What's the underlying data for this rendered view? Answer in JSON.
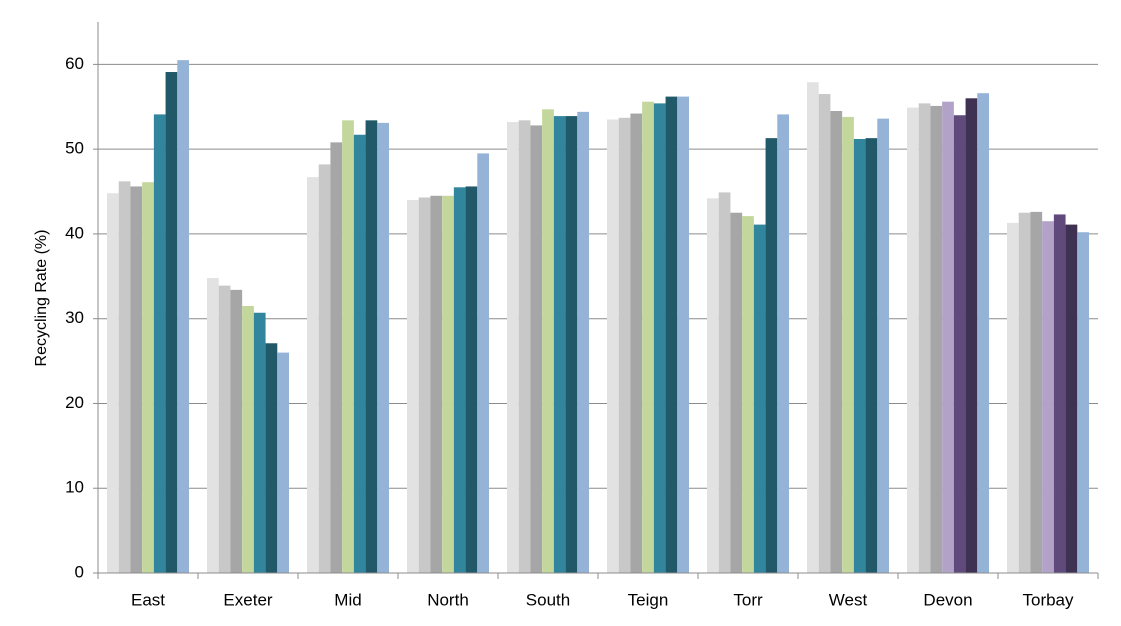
{
  "chart_data": {
    "type": "bar",
    "y_label": "Recycling Rate (%)",
    "categories": [
      "East",
      "Exeter",
      "Mid",
      "North",
      "South",
      "Teign",
      "Torr",
      "West",
      "Devon",
      "Torbay"
    ],
    "series": [
      {
        "colors": [
          "#e2e2e2",
          "#e2e2e2",
          "#e2e2e2",
          "#e2e2e2",
          "#e2e2e2",
          "#e2e2e2",
          "#e2e2e2",
          "#e2e2e2",
          "#e2e2e2",
          "#e2e2e2"
        ],
        "values": [
          44.8,
          34.8,
          46.7,
          44.0,
          53.2,
          53.5,
          44.2,
          57.9,
          54.9,
          41.3
        ]
      },
      {
        "colors": [
          "#c8c8c8",
          "#c8c8c8",
          "#c8c8c8",
          "#c8c8c8",
          "#c8c8c8",
          "#c8c8c8",
          "#c8c8c8",
          "#c8c8c8",
          "#c8c8c8",
          "#c8c8c8"
        ],
        "values": [
          46.2,
          33.9,
          48.2,
          44.3,
          53.4,
          53.7,
          44.9,
          56.5,
          55.4,
          42.5
        ]
      },
      {
        "colors": [
          "#a6a6a6",
          "#a6a6a6",
          "#a6a6a6",
          "#a6a6a6",
          "#a6a6a6",
          "#a6a6a6",
          "#a6a6a6",
          "#a6a6a6",
          "#a6a6a6",
          "#a6a6a6"
        ],
        "values": [
          45.6,
          33.4,
          50.8,
          44.5,
          52.8,
          54.2,
          42.5,
          54.5,
          55.1,
          42.6
        ]
      },
      {
        "colors": [
          "#c3d69b",
          "#c3d69b",
          "#c3d69b",
          "#c3d69b",
          "#c3d69b",
          "#c3d69b",
          "#c3d69b",
          "#c3d69b",
          "#b3a2c7",
          "#b3a2c7"
        ],
        "values": [
          46.1,
          31.5,
          53.4,
          44.5,
          54.7,
          55.6,
          42.1,
          53.8,
          55.6,
          41.5
        ]
      },
      {
        "colors": [
          "#31859c",
          "#31859c",
          "#31859c",
          "#31859c",
          "#31859c",
          "#31859c",
          "#31859c",
          "#31859c",
          "#604a7b",
          "#604a7b"
        ],
        "values": [
          54.1,
          30.7,
          51.7,
          45.5,
          53.9,
          55.4,
          41.1,
          51.2,
          54.0,
          42.3
        ]
      },
      {
        "colors": [
          "#215968",
          "#215968",
          "#215968",
          "#215968",
          "#215968",
          "#215968",
          "#215968",
          "#215968",
          "#3f3151",
          "#3f3151"
        ],
        "values": [
          59.1,
          27.1,
          53.4,
          45.6,
          53.9,
          56.2,
          51.3,
          51.3,
          56.0,
          41.1
        ]
      },
      {
        "colors": [
          "#95b3d7",
          "#95b3d7",
          "#95b3d7",
          "#95b3d7",
          "#95b3d7",
          "#95b3d7",
          "#95b3d7",
          "#95b3d7",
          "#95b3d7",
          "#95b3d7"
        ],
        "values": [
          60.5,
          26.0,
          53.1,
          49.5,
          54.4,
          56.2,
          54.1,
          53.6,
          56.6,
          40.2
        ]
      }
    ],
    "ylim": [
      0,
      65
    ],
    "yticks": [
      0,
      10,
      20,
      30,
      40,
      50,
      60
    ],
    "grid": true
  }
}
